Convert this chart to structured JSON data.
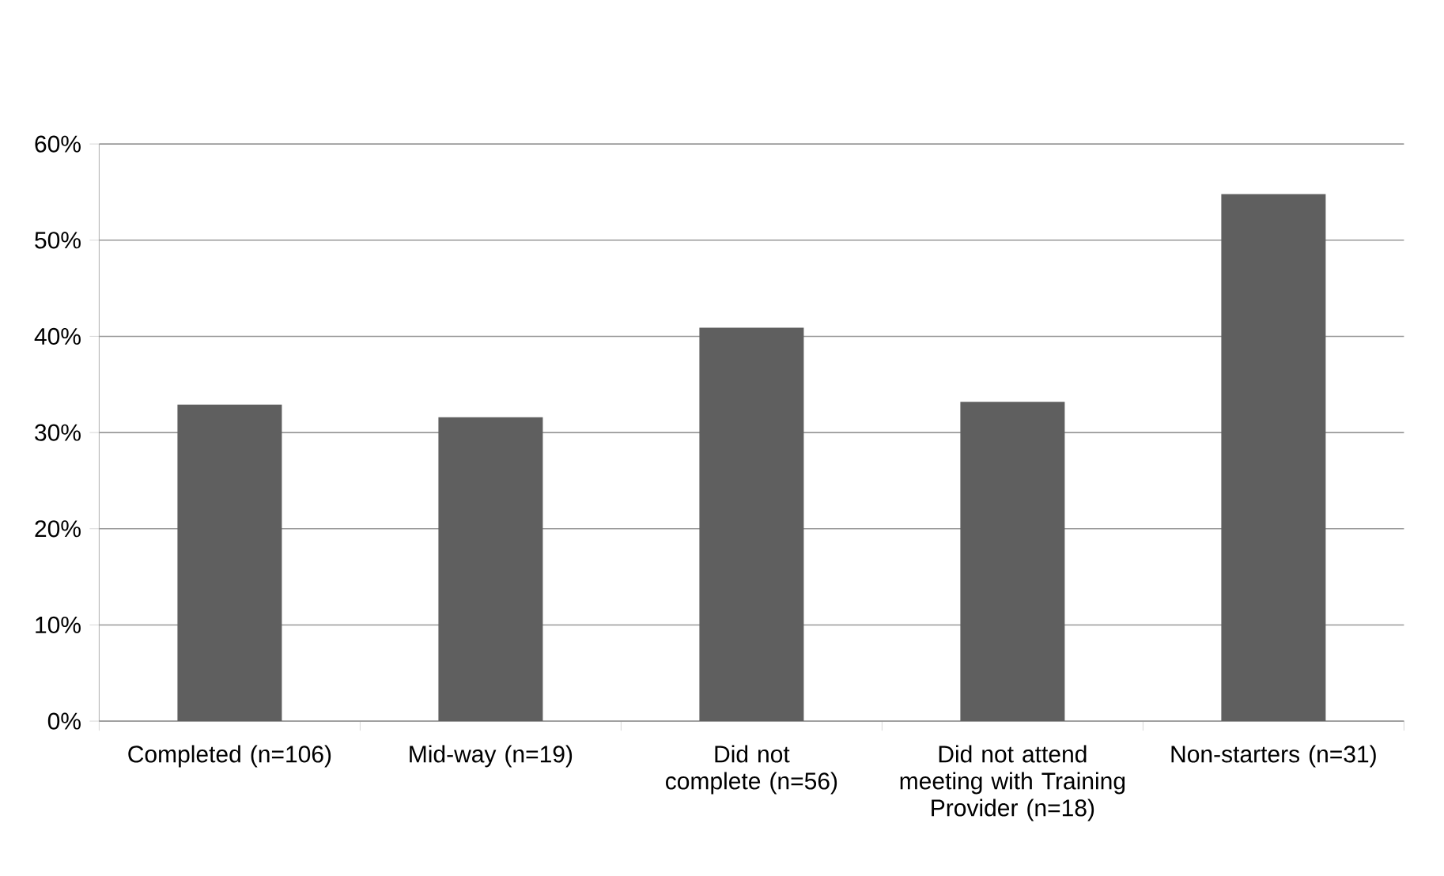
{
  "chart_data": {
    "type": "bar",
    "categories": [
      "Completed (n=106)",
      "Mid-way (n=19)",
      "Did not complete (n=56)",
      "Did not attend meeting with Training Provider (n=18)",
      "Non-starters (n=31)"
    ],
    "values": [
      32.9,
      31.6,
      40.9,
      33.2,
      54.8
    ],
    "color": "#5f5f5f",
    "ylim": [
      0,
      60
    ],
    "yticks": [
      {
        "value": 0,
        "label": "0%"
      },
      {
        "value": 10,
        "label": "10%"
      },
      {
        "value": 20,
        "label": "20%"
      },
      {
        "value": 30,
        "label": "30%"
      },
      {
        "value": 40,
        "label": "40%"
      },
      {
        "value": 50,
        "label": "50%"
      },
      {
        "value": 60,
        "label": "60%"
      }
    ],
    "grid": "y"
  }
}
